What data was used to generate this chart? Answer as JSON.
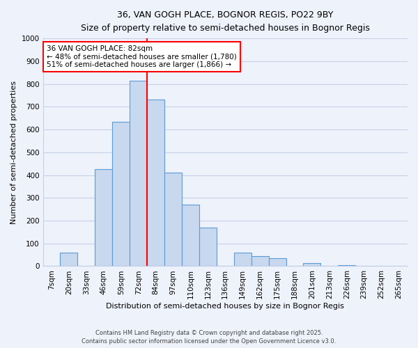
{
  "title": "36, VAN GOGH PLACE, BOGNOR REGIS, PO22 9BY",
  "subtitle": "Size of property relative to semi-detached houses in Bognor Regis",
  "xlabel": "Distribution of semi-detached houses by size in Bognor Regis",
  "ylabel": "Number of semi-detached properties",
  "bin_labels": [
    "7sqm",
    "20sqm",
    "33sqm",
    "46sqm",
    "59sqm",
    "72sqm",
    "84sqm",
    "97sqm",
    "110sqm",
    "123sqm",
    "136sqm",
    "149sqm",
    "162sqm",
    "175sqm",
    "188sqm",
    "201sqm",
    "213sqm",
    "226sqm",
    "239sqm",
    "252sqm",
    "265sqm"
  ],
  "bar_values": [
    0,
    60,
    0,
    425,
    635,
    815,
    730,
    410,
    270,
    170,
    0,
    60,
    45,
    35,
    0,
    15,
    0,
    5,
    0,
    0,
    0
  ],
  "bar_color": "#c8d8ee",
  "bar_edge_color": "#5b9bd5",
  "vline_color": "red",
  "vline_position": 5.5,
  "ylim": [
    0,
    1000
  ],
  "yticks": [
    0,
    100,
    200,
    300,
    400,
    500,
    600,
    700,
    800,
    900,
    1000
  ],
  "annotation_title": "36 VAN GOGH PLACE: 82sqm",
  "annotation_line1": "← 48% of semi-detached houses are smaller (1,780)",
  "annotation_line2": "51% of semi-detached houses are larger (1,866) →",
  "footer1": "Contains HM Land Registry data © Crown copyright and database right 2025.",
  "footer2": "Contains public sector information licensed under the Open Government Licence v3.0.",
  "bg_color": "#eef2fb",
  "grid_color": "#c8d0e8"
}
